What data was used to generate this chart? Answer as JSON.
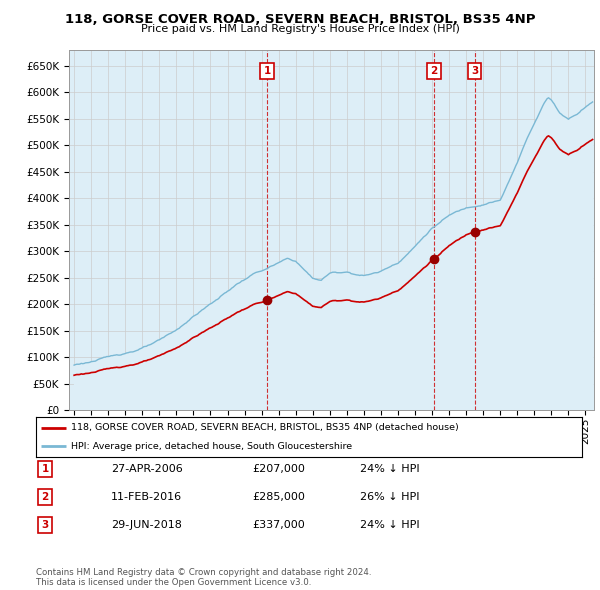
{
  "title": "118, GORSE COVER ROAD, SEVERN BEACH, BRISTOL, BS35 4NP",
  "subtitle": "Price paid vs. HM Land Registry's House Price Index (HPI)",
  "ylabel_ticks": [
    "£0",
    "£50K",
    "£100K",
    "£150K",
    "£200K",
    "£250K",
    "£300K",
    "£350K",
    "£400K",
    "£450K",
    "£500K",
    "£550K",
    "£600K",
    "£650K"
  ],
  "ytick_values": [
    0,
    50000,
    100000,
    150000,
    200000,
    250000,
    300000,
    350000,
    400000,
    450000,
    500000,
    550000,
    600000,
    650000
  ],
  "ylim": [
    0,
    680000
  ],
  "hpi_color": "#7ab8d4",
  "hpi_fill_color": "#ddeef7",
  "price_color": "#cc0000",
  "transactions": [
    {
      "date": 2006.32,
      "price": 207000,
      "label": "1"
    },
    {
      "date": 2016.12,
      "price": 285000,
      "label": "2"
    },
    {
      "date": 2018.5,
      "price": 337000,
      "label": "3"
    }
  ],
  "transaction_dates_str": [
    "27-APR-2006",
    "11-FEB-2016",
    "29-JUN-2018"
  ],
  "transaction_prices_str": [
    "£207,000",
    "£285,000",
    "£337,000"
  ],
  "transaction_hpi_str": [
    "24% ↓ HPI",
    "26% ↓ HPI",
    "24% ↓ HPI"
  ],
  "legend_label1": "118, GORSE COVER ROAD, SEVERN BEACH, BRISTOL, BS35 4NP (detached house)",
  "legend_label2": "HPI: Average price, detached house, South Gloucestershire",
  "footer": "Contains HM Land Registry data © Crown copyright and database right 2024.\nThis data is licensed under the Open Government Licence v3.0.",
  "background_color": "#ffffff",
  "grid_color": "#cccccc",
  "xlim_start": 1994.7,
  "xlim_end": 2025.5
}
